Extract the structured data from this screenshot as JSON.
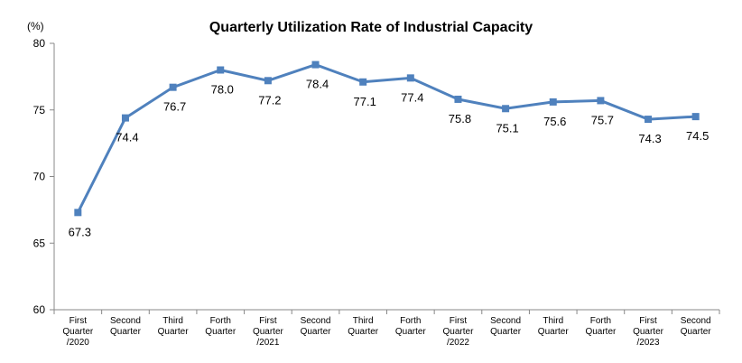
{
  "chart_data": {
    "type": "line",
    "title": "Quarterly Utilization Rate of Industrial Capacity",
    "unit_label": "(%)",
    "xlabel": "",
    "ylabel": "",
    "ylim": [
      60,
      80
    ],
    "y_ticks": [
      60,
      65,
      70,
      75,
      80
    ],
    "grid": false,
    "legend": "none",
    "categories": [
      "First Quarter /2020",
      "Second Quarter",
      "Third Quarter",
      "Forth Quarter",
      "First Quarter /2021",
      "Second Quarter",
      "Third Quarter",
      "Forth Quarter",
      "First Quarter /2022",
      "Second Quarter",
      "Third Quarter",
      "Forth Quarter",
      "First Quarter /2023",
      "Second Quarter"
    ],
    "category_lines": [
      [
        "First",
        "Quarter",
        "/2020"
      ],
      [
        "Second",
        "Quarter"
      ],
      [
        "Third",
        "Quarter"
      ],
      [
        "Forth",
        "Quarter"
      ],
      [
        "First",
        "Quarter",
        "/2021"
      ],
      [
        "Second",
        "Quarter"
      ],
      [
        "Third",
        "Quarter"
      ],
      [
        "Forth",
        "Quarter"
      ],
      [
        "First",
        "Quarter",
        "/2022"
      ],
      [
        "Second",
        "Quarter"
      ],
      [
        "Third",
        "Quarter"
      ],
      [
        "Forth",
        "Quarter"
      ],
      [
        "First",
        "Quarter",
        "/2023"
      ],
      [
        "Second",
        "Quarter"
      ]
    ],
    "series": [
      {
        "values": [
          67.3,
          74.4,
          76.7,
          78.0,
          77.2,
          78.4,
          77.1,
          77.4,
          75.8,
          75.1,
          75.6,
          75.7,
          74.3,
          74.5
        ],
        "labels": [
          "67.3",
          "74.4",
          "76.7",
          "78.0",
          "77.2",
          "78.4",
          "77.1",
          "77.4",
          "75.8",
          "75.1",
          "75.6",
          "75.7",
          "74.3",
          "74.5"
        ]
      }
    ],
    "line_color": "#4f81bd",
    "marker_color": "#4f81bd"
  }
}
